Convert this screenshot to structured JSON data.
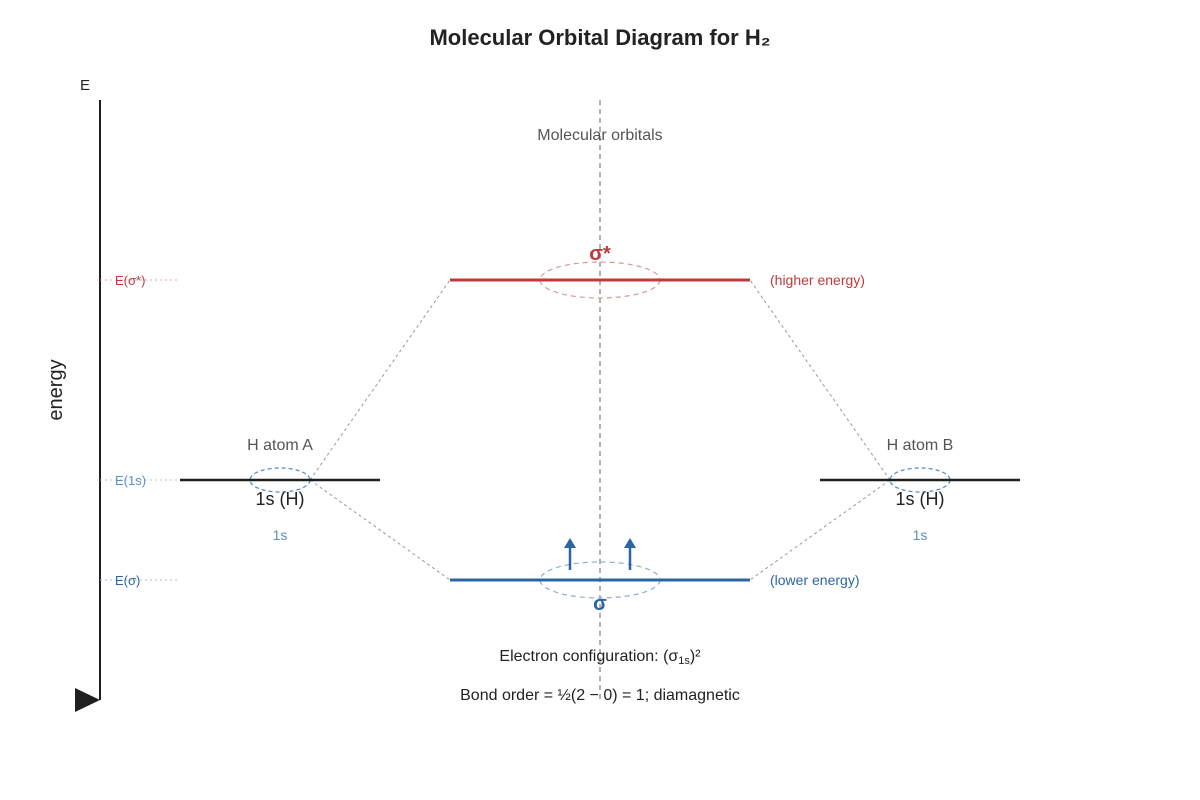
{
  "title": "Molecular Orbital Diagram for H₂",
  "axis": {
    "top_label": "E",
    "ylabel": "energy",
    "ticks": [
      {
        "label": "E(σ*)",
        "level": "sigma_star"
      },
      {
        "label": "E(1s)",
        "level": "atomic"
      },
      {
        "label": "E(σ)",
        "level": "sigma"
      }
    ]
  },
  "center_heading": "Molecular orbitals",
  "atom_a": {
    "heading": "H atom A",
    "level_label": "1s (H)",
    "sub_label": "1s"
  },
  "atom_b": {
    "heading": "H atom B",
    "level_label": "1s (H)",
    "sub_label": "1s"
  },
  "sigma_star": {
    "symbol": "σ*",
    "note": "(higher energy)"
  },
  "sigma": {
    "symbol": "σ",
    "note": "(lower energy)",
    "electrons": 2
  },
  "footer": {
    "config_prefix": "Electron configuration: (σ",
    "config_sub": "1s",
    "config_suffix": ")²",
    "bond_order": "Bond order = ½(2 − 0) = 1; diamagnetic"
  },
  "colors": {
    "antibonding": "#c0393b",
    "bonding": "#2b65a6",
    "atomic_tick": "#5b8fc1",
    "atomic_level": "#1f1f1f",
    "guide": "#999999",
    "text": "#222222",
    "muted": "#555555"
  }
}
